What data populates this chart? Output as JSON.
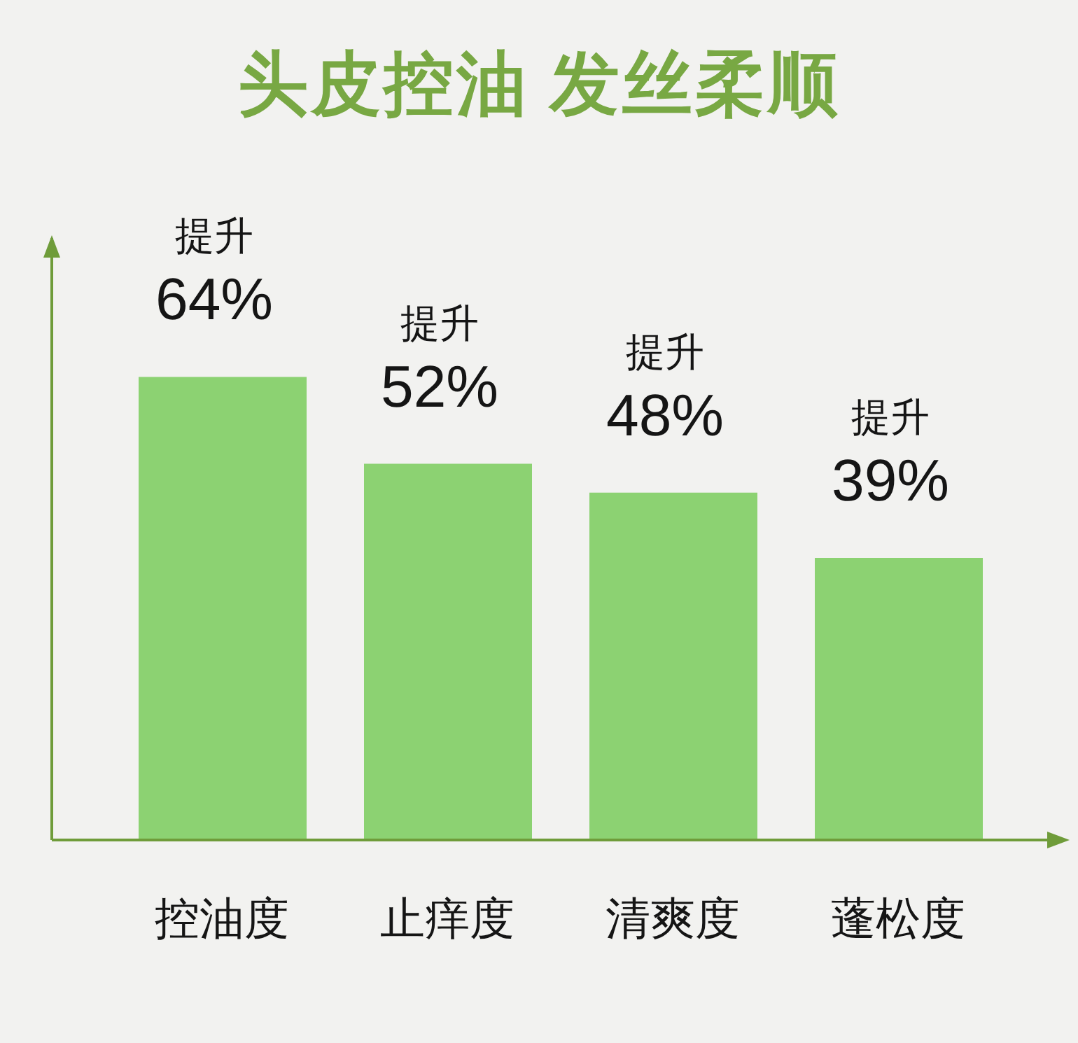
{
  "chart_data": {
    "type": "bar",
    "title": "头皮控油 发丝柔顺",
    "categories": [
      "控油度",
      "止痒度",
      "清爽度",
      "蓬松度"
    ],
    "values": [
      64,
      52,
      48,
      39
    ],
    "color": "#8cd272",
    "value_labels": [
      "提升\n64%",
      "提升\n52%",
      "提升\n48%",
      "提升\n39%"
    ],
    "tick_labels": "x"
  }
}
